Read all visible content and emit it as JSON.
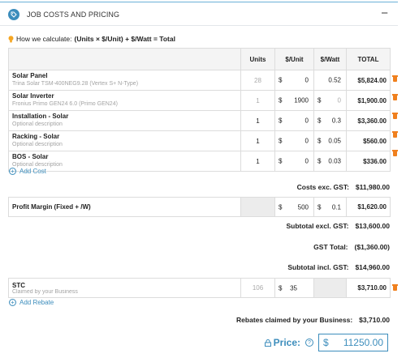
{
  "header": {
    "title": "JOB COSTS AND PRICING",
    "collapse": "−"
  },
  "calc": {
    "prefix": "How we calculate:",
    "formula": "(Units × $/Unit) + $/Watt = Total"
  },
  "columns": {
    "units": "Units",
    "per_unit": "$/Unit",
    "per_watt": "$/Watt",
    "total": "TOTAL"
  },
  "currency": "$",
  "costs": [
    {
      "title": "Solar Panel",
      "sub": "Trina Solar TSM-400NEG9.28 (Vertex S+ N-Type)",
      "units": "28",
      "per_unit": "0",
      "per_watt": "0.52",
      "total": "$5,824.00"
    },
    {
      "title": "Solar Inverter",
      "sub": "Fronius Primo GEN24 6.0 (Primo GEN24)",
      "units": "1",
      "per_unit": "1900",
      "per_watt": "0",
      "total": "$1,900.00"
    },
    {
      "title": "Installation - Solar",
      "sub": "Optional description",
      "units": "1",
      "per_unit": "0",
      "per_watt": "0.3",
      "total": "$3,360.00"
    },
    {
      "title": "Racking - Solar",
      "sub": "Optional description",
      "units": "1",
      "per_unit": "0",
      "per_watt": "0.05",
      "total": "$560.00"
    },
    {
      "title": "BOS - Solar",
      "sub": "Optional description",
      "units": "1",
      "per_unit": "0",
      "per_watt": "0.03",
      "total": "$336.00"
    }
  ],
  "add_cost": "Add Cost",
  "costs_exc_label": "Costs exc. GST:",
  "costs_exc_value": "$11,980.00",
  "profit": {
    "title": "Profit Margin (Fixed + /W)",
    "per_unit": "500",
    "per_watt": "0.1",
    "total": "$1,620.00"
  },
  "subtotal_excl_label": "Subtotal excl. GST:",
  "subtotal_excl_value": "$13,600.00",
  "gst_label": "GST Total:",
  "gst_value": "($1,360.00)",
  "subtotal_incl_label": "Subtotal incl. GST:",
  "subtotal_incl_value": "$14,960.00",
  "stc": {
    "title": "STC",
    "sub": "Claimed by your Business",
    "units": "106",
    "per_unit": "35",
    "total": "$3,710.00"
  },
  "add_rebate": "Add Rebate",
  "rebates_label": "Rebates claimed by your Business:",
  "rebates_value": "$3,710.00",
  "price": {
    "label": "Price:",
    "help": "?",
    "currency": "$",
    "value": "11250.00"
  },
  "colors": {
    "accent": "#3c8dbc",
    "trash": "#f0801e",
    "bulb": "#f5a623"
  }
}
